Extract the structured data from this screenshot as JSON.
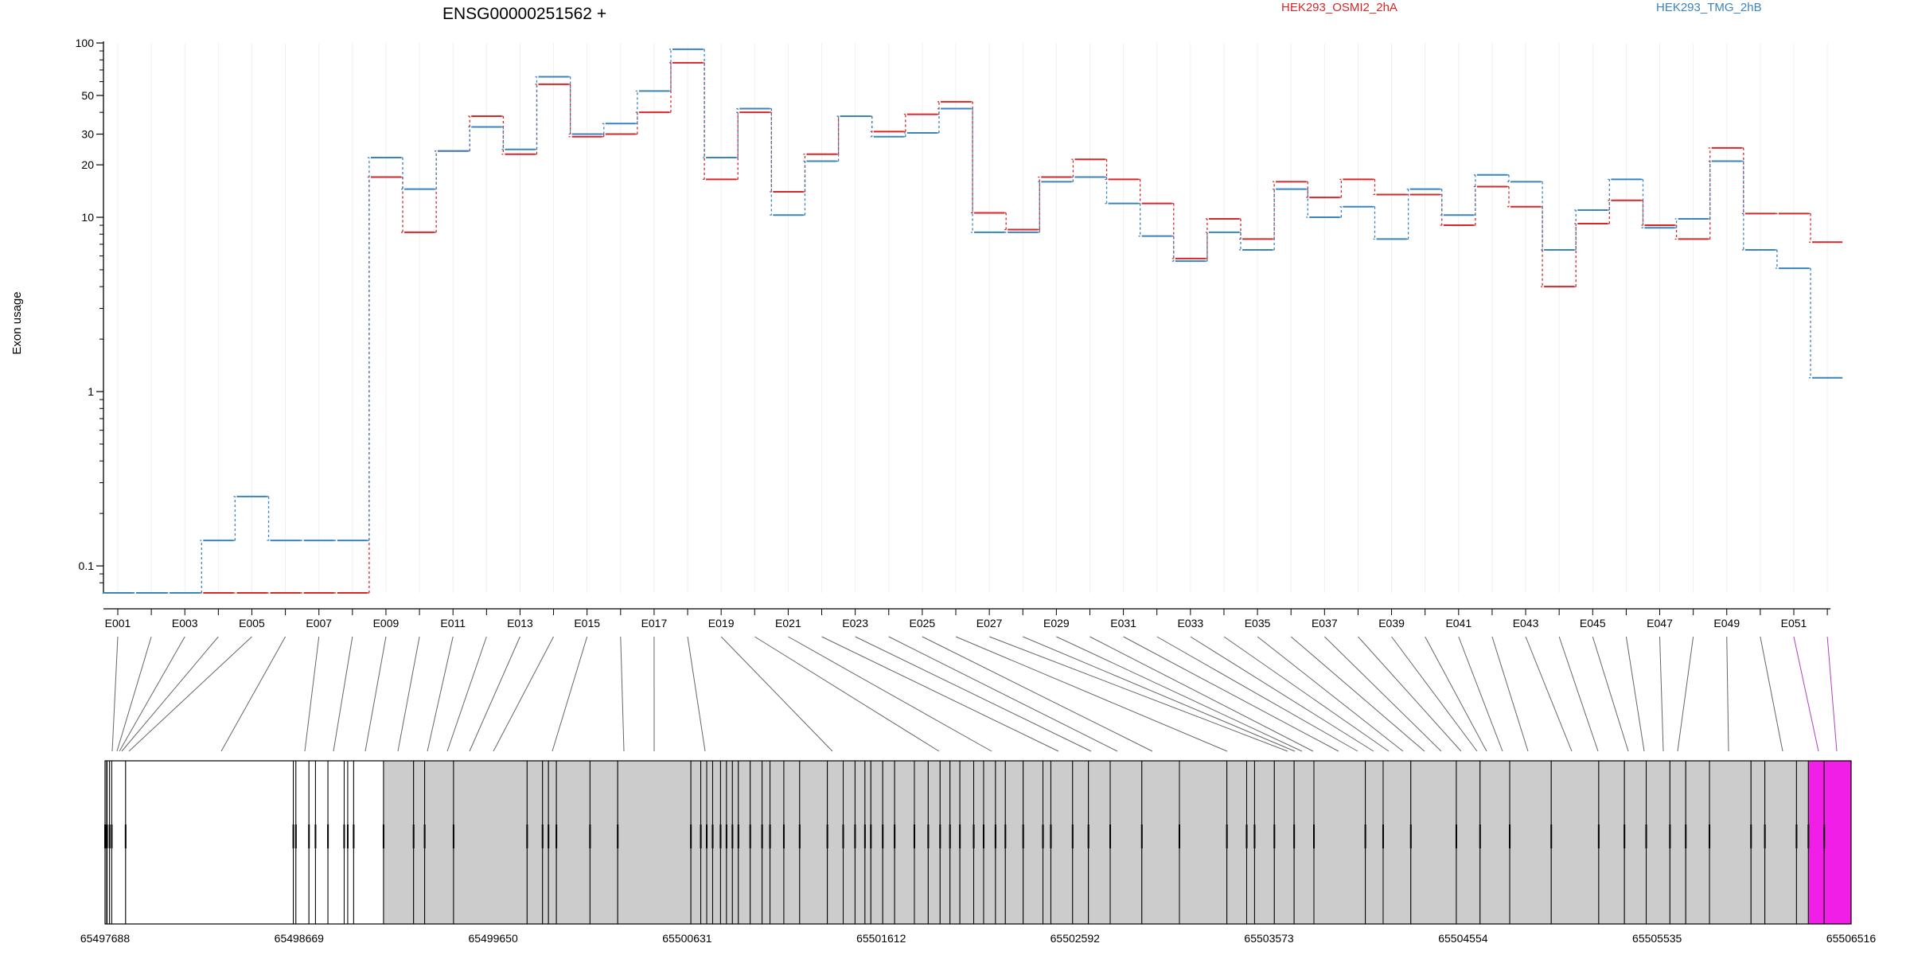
{
  "chart_data": {
    "type": "line",
    "title": "ENSG00000251562 +",
    "ylabel": "Exon usage",
    "yscale": "log",
    "ylim": [
      0.07,
      100
    ],
    "yticks": [
      0.1,
      1,
      10,
      20,
      30,
      50,
      100
    ],
    "ytick_labels": [
      "0.1",
      "1",
      "10",
      "20",
      "30",
      "50",
      "100"
    ],
    "legend_placement": "top",
    "exons": [
      "E001",
      "E002",
      "E003",
      "E004",
      "E005",
      "E006",
      "E007",
      "E008",
      "E009",
      "E010",
      "E011",
      "E012",
      "E013",
      "E014",
      "E015",
      "E016",
      "E017",
      "E018",
      "E019",
      "E020",
      "E021",
      "E022",
      "E023",
      "E024",
      "E025",
      "E026",
      "E027",
      "E028",
      "E029",
      "E030",
      "E031",
      "E032",
      "E033",
      "E034",
      "E035",
      "E036",
      "E037",
      "E038",
      "E039",
      "E040",
      "E041",
      "E042",
      "E043",
      "E044",
      "E045",
      "E046",
      "E047",
      "E048",
      "E049",
      "E050",
      "E051",
      "E052"
    ],
    "series": [
      {
        "name": "HEK293_OSMI2_2hA",
        "color": "#d62728",
        "values": [
          0.07,
          0.07,
          0.07,
          0.07,
          0.07,
          0.07,
          0.07,
          0.07,
          17,
          8.2,
          24,
          38,
          23,
          58,
          29,
          30,
          40,
          77,
          16.5,
          40,
          14,
          23,
          38,
          31,
          39,
          46,
          10.6,
          8.5,
          17,
          21.5,
          16.5,
          12,
          5.8,
          9.8,
          7.5,
          16,
          13,
          16.5,
          13.5,
          13.5,
          9,
          15,
          11.5,
          4,
          9.2,
          12.5,
          9,
          7.5,
          25,
          10.5,
          10.5,
          7.2
        ]
      },
      {
        "name": "HEK293_TMG_2hB",
        "color": "#3b83bd",
        "values": [
          0.07,
          0.07,
          0.07,
          0.14,
          0.25,
          0.14,
          0.14,
          0.14,
          22,
          14.5,
          24,
          33,
          24.5,
          64,
          30,
          34.5,
          53,
          92,
          22,
          42,
          10.3,
          21,
          38,
          29,
          30.5,
          42,
          8.2,
          8.2,
          16,
          17,
          12,
          7.8,
          5.6,
          8.2,
          6.5,
          14.5,
          10,
          11.5,
          7.5,
          14.5,
          10.3,
          17.5,
          16,
          6.5,
          11,
          16.5,
          8.7,
          9.8,
          21,
          6.5,
          5.1,
          1.2
        ]
      }
    ],
    "gene_model": {
      "coord_labels": [
        "65497688",
        "65498669",
        "65499650",
        "65500631",
        "65501612",
        "65502592",
        "65503573",
        "65504554",
        "65505535",
        "65506516"
      ],
      "coord_values": [
        65497688,
        65498669,
        65499650,
        65500631,
        65501612,
        65502592,
        65503573,
        65504554,
        65505535,
        65506516
      ],
      "segment_colors": {
        "exonic": "#cccccc",
        "intronic": "#ffffff",
        "highlighted": "#f01ee6"
      }
    }
  }
}
